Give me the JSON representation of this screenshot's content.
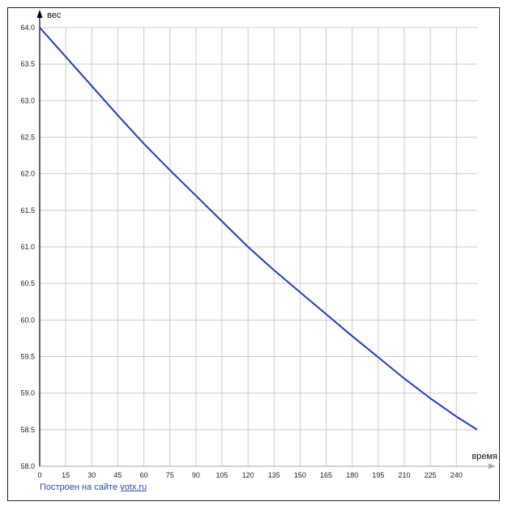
{
  "chart_data": {
    "type": "line",
    "xlabel": "время",
    "ylabel": "вес",
    "xlim": [
      0,
      252
    ],
    "ylim": [
      58.0,
      64.0
    ],
    "x_ticks": [
      "0",
      "15",
      "30",
      "45",
      "60",
      "75",
      "90",
      "105",
      "120",
      "135",
      "150",
      "165",
      "180",
      "195",
      "210",
      "225",
      "240"
    ],
    "y_ticks": [
      "58.0",
      "58.5",
      "59.0",
      "59.5",
      "60.0",
      "60.5",
      "61.0",
      "61.5",
      "62.0",
      "62.5",
      "63.0",
      "63.5",
      "64.0"
    ],
    "grid": true,
    "series": [
      {
        "color": "#1f3fbf",
        "x": [
          0,
          15,
          30,
          45,
          60,
          75,
          90,
          105,
          120,
          135,
          150,
          165,
          180,
          195,
          210,
          225,
          240,
          252
        ],
        "y": [
          64.0,
          63.6,
          63.2,
          62.8,
          62.41,
          62.05,
          61.7,
          61.35,
          61.0,
          60.68,
          60.38,
          60.08,
          59.78,
          59.49,
          59.2,
          58.93,
          58.68,
          58.5
        ]
      }
    ]
  },
  "credit": {
    "text": "Построен на сайте",
    "link": "yotx.ru"
  }
}
